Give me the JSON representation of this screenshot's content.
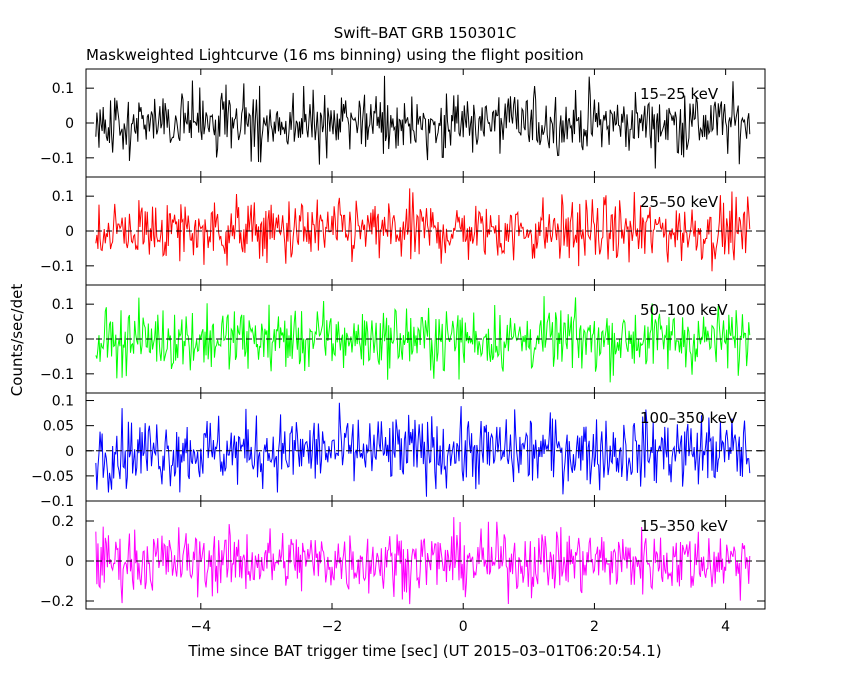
{
  "chart_data": {
    "type": "line",
    "title": "Swift–BAT GRB 150301C",
    "subtitle": "Maskweighted Lightcurve (16 ms binning) using the flight position",
    "xlabel": "Time since BAT trigger time [sec] (UT 2015–03–01T06:20:54.1)",
    "ylabel": "Counts/sec/det",
    "xlim": [
      -5.75,
      4.6
    ],
    "x_ticks": [
      -4,
      -2,
      0,
      2,
      4
    ],
    "x_tick_labels": [
      "−4",
      "−2",
      "0",
      "2",
      "4"
    ],
    "x_data_range": [
      -5.6,
      4.38
    ],
    "bin_width_sec": 0.016,
    "panels": [
      {
        "band": "15–25 keV",
        "color": "#000000",
        "ylim": [
          -0.155,
          0.155
        ],
        "y_ticks": [
          -0.1,
          0,
          0.1
        ],
        "y_tick_labels": [
          "−0.1",
          "0",
          "0.1"
        ],
        "mean": 0.0,
        "approx_noise_sigma": 0.045,
        "zero_line": false
      },
      {
        "band": "25–50 keV",
        "color": "#ff0000",
        "ylim": [
          -0.155,
          0.155
        ],
        "y_ticks": [
          -0.1,
          0,
          0.1
        ],
        "y_tick_labels": [
          "−0.1",
          "0",
          "0.1"
        ],
        "mean": 0.0,
        "approx_noise_sigma": 0.045,
        "zero_line": true
      },
      {
        "band": "50–100 keV",
        "color": "#00ff00",
        "ylim": [
          -0.155,
          0.155
        ],
        "y_ticks": [
          -0.1,
          0,
          0.1
        ],
        "y_tick_labels": [
          "−0.1",
          "0",
          "0.1"
        ],
        "mean": 0.0,
        "approx_noise_sigma": 0.045,
        "zero_line": true
      },
      {
        "band": "100–350 keV",
        "color": "#0000ff",
        "ylim": [
          -0.1,
          0.115
        ],
        "y_ticks": [
          -0.1,
          -0.05,
          0,
          0.05,
          0.1
        ],
        "y_tick_labels": [
          "−0.1",
          "−0.05",
          "0",
          "0.05",
          "0.1"
        ],
        "mean": 0.0,
        "approx_noise_sigma": 0.035,
        "zero_line": true
      },
      {
        "band": "15–350 keV",
        "color": "#ff00ff",
        "ylim": [
          -0.24,
          0.3
        ],
        "y_ticks": [
          -0.2,
          0,
          0.2
        ],
        "y_tick_labels": [
          "−0.2",
          "0",
          "0.2"
        ],
        "mean": 0.0,
        "approx_noise_sigma": 0.08,
        "zero_line": true
      }
    ]
  }
}
